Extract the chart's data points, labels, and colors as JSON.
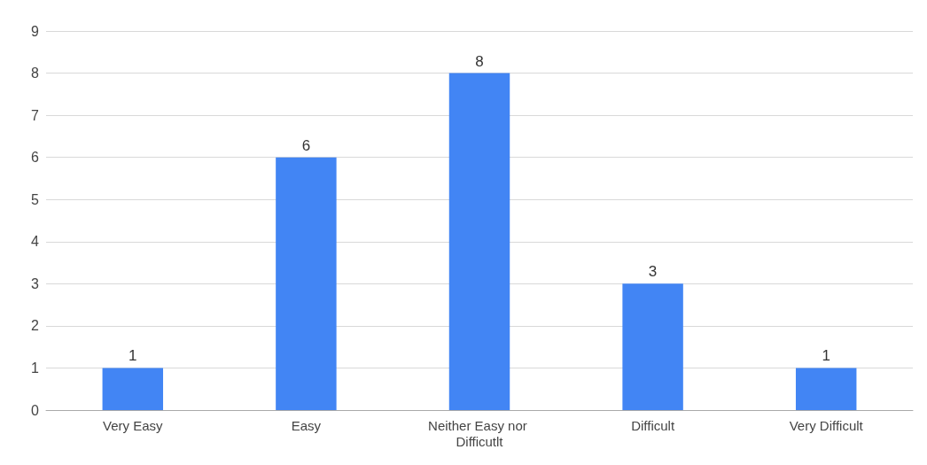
{
  "chart_data": {
    "type": "bar",
    "categories": [
      "Very Easy",
      "Easy",
      "Neither Easy nor Difficutlt",
      "Difficult",
      "Very Difficult"
    ],
    "values": [
      1,
      6,
      8,
      3,
      1
    ],
    "color": "#4285f4",
    "ylim": [
      0,
      9
    ],
    "yticks": [
      0,
      1,
      2,
      3,
      4,
      5,
      6,
      7,
      8,
      9
    ],
    "grid": "y",
    "data_labels": true
  }
}
